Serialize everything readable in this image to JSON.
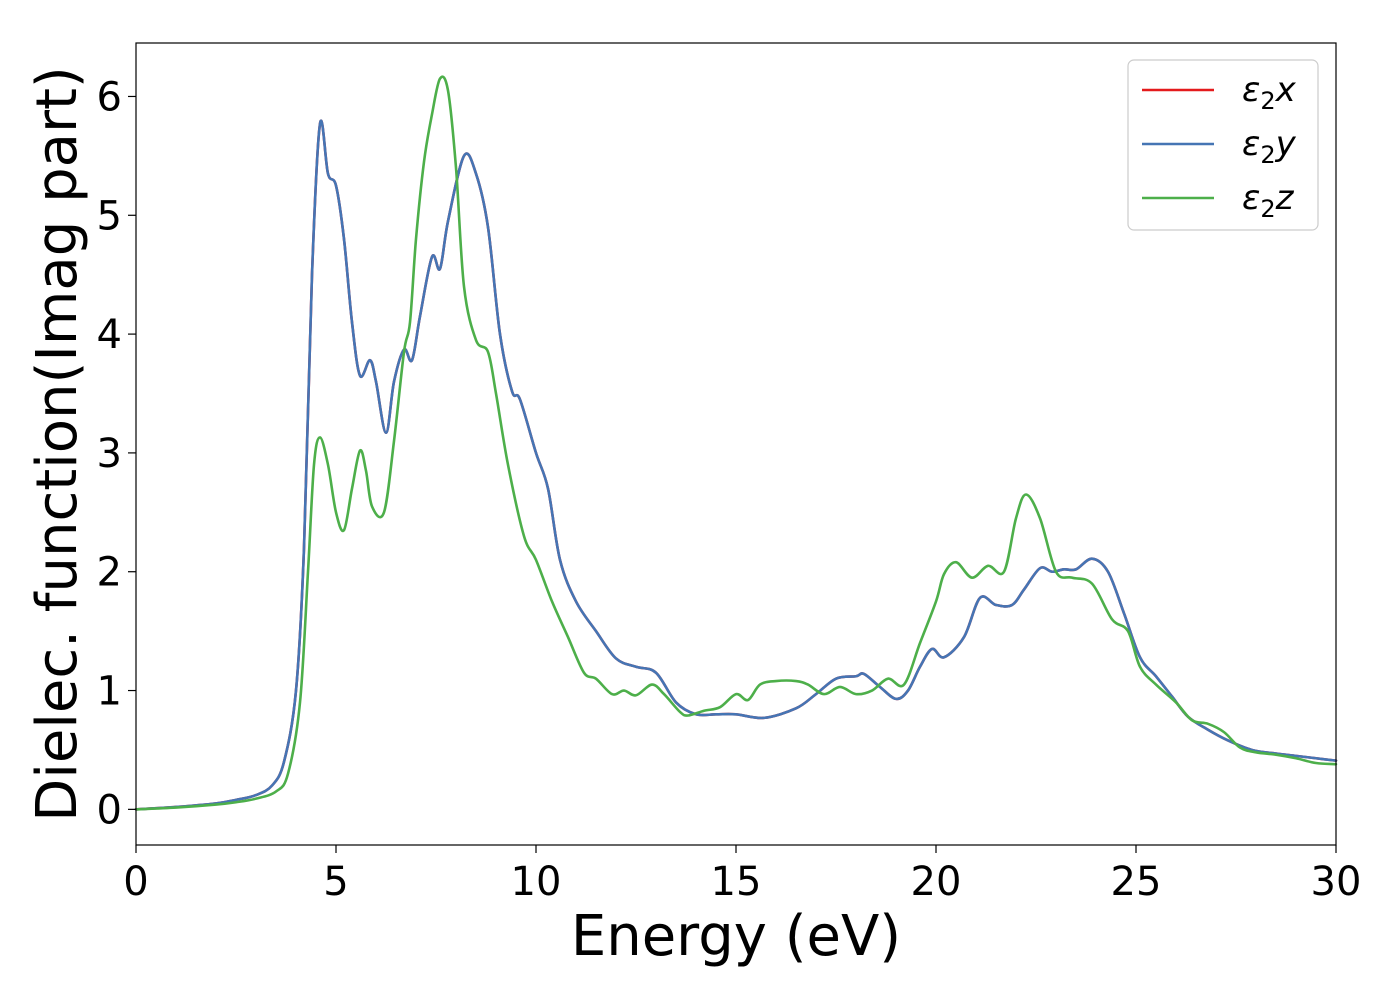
{
  "chart_data": {
    "type": "line",
    "title": "",
    "xlabel": "Energy (eV)",
    "ylabel": "Dielec. function(Imag part)",
    "xlim": [
      0,
      30
    ],
    "ylim": [
      -0.3,
      6.45
    ],
    "xticks": [
      0,
      5,
      10,
      15,
      20,
      25,
      30
    ],
    "yticks": [
      0,
      1,
      2,
      3,
      4,
      5,
      6
    ],
    "grid": false,
    "legend_position": "top-right",
    "series": [
      {
        "name": "ε2x",
        "sub": "2",
        "base": "ε",
        "suffix": "x",
        "color": "#e41a1c",
        "points": [
          [
            0,
            0
          ],
          [
            1,
            0.02
          ],
          [
            2,
            0.05
          ],
          [
            2.5,
            0.08
          ],
          [
            3,
            0.12
          ],
          [
            3.4,
            0.2
          ],
          [
            3.7,
            0.4
          ],
          [
            4,
            1.0
          ],
          [
            4.2,
            2.2
          ],
          [
            4.4,
            4.5
          ],
          [
            4.6,
            5.77
          ],
          [
            4.8,
            5.35
          ],
          [
            5,
            5.25
          ],
          [
            5.2,
            4.8
          ],
          [
            5.4,
            4.1
          ],
          [
            5.6,
            3.65
          ],
          [
            5.85,
            3.78
          ],
          [
            6,
            3.6
          ],
          [
            6.25,
            3.17
          ],
          [
            6.45,
            3.6
          ],
          [
            6.7,
            3.87
          ],
          [
            6.9,
            3.78
          ],
          [
            7.1,
            4.15
          ],
          [
            7.4,
            4.65
          ],
          [
            7.6,
            4.55
          ],
          [
            7.8,
            4.95
          ],
          [
            8.2,
            5.5
          ],
          [
            8.5,
            5.35
          ],
          [
            8.8,
            4.9
          ],
          [
            9.1,
            4.0
          ],
          [
            9.4,
            3.52
          ],
          [
            9.6,
            3.45
          ],
          [
            10,
            3.0
          ],
          [
            10.3,
            2.7
          ],
          [
            10.6,
            2.1
          ],
          [
            11,
            1.75
          ],
          [
            11.5,
            1.5
          ],
          [
            12,
            1.27
          ],
          [
            12.5,
            1.2
          ],
          [
            13,
            1.15
          ],
          [
            13.5,
            0.9
          ],
          [
            14,
            0.8
          ],
          [
            14.5,
            0.8
          ],
          [
            15,
            0.8
          ],
          [
            15.7,
            0.77
          ],
          [
            16.5,
            0.85
          ],
          [
            17,
            0.97
          ],
          [
            17.5,
            1.1
          ],
          [
            18,
            1.12
          ],
          [
            18.2,
            1.14
          ],
          [
            18.6,
            1.03
          ],
          [
            19,
            0.93
          ],
          [
            19.3,
            1.0
          ],
          [
            19.6,
            1.2
          ],
          [
            19.9,
            1.35
          ],
          [
            20.2,
            1.28
          ],
          [
            20.7,
            1.45
          ],
          [
            21.1,
            1.78
          ],
          [
            21.5,
            1.72
          ],
          [
            21.9,
            1.72
          ],
          [
            22.2,
            1.85
          ],
          [
            22.6,
            2.03
          ],
          [
            22.9,
            2.0
          ],
          [
            23.2,
            2.02
          ],
          [
            23.5,
            2.02
          ],
          [
            23.9,
            2.11
          ],
          [
            24.3,
            2.0
          ],
          [
            24.7,
            1.65
          ],
          [
            25.1,
            1.28
          ],
          [
            25.5,
            1.12
          ],
          [
            25.9,
            0.95
          ],
          [
            26.3,
            0.78
          ],
          [
            26.8,
            0.67
          ],
          [
            27.3,
            0.58
          ],
          [
            27.9,
            0.5
          ],
          [
            28.5,
            0.47
          ],
          [
            29,
            0.45
          ],
          [
            29.5,
            0.43
          ],
          [
            30,
            0.41
          ]
        ]
      },
      {
        "name": "ε2y",
        "sub": "2",
        "base": "ε",
        "suffix": "y",
        "color": "#4575b4",
        "points": [
          [
            0,
            0
          ],
          [
            1,
            0.02
          ],
          [
            2,
            0.05
          ],
          [
            2.5,
            0.08
          ],
          [
            3,
            0.12
          ],
          [
            3.4,
            0.2
          ],
          [
            3.7,
            0.4
          ],
          [
            4,
            1.0
          ],
          [
            4.2,
            2.2
          ],
          [
            4.4,
            4.5
          ],
          [
            4.6,
            5.77
          ],
          [
            4.8,
            5.35
          ],
          [
            5,
            5.25
          ],
          [
            5.2,
            4.8
          ],
          [
            5.4,
            4.1
          ],
          [
            5.6,
            3.65
          ],
          [
            5.85,
            3.78
          ],
          [
            6,
            3.6
          ],
          [
            6.25,
            3.17
          ],
          [
            6.45,
            3.6
          ],
          [
            6.7,
            3.87
          ],
          [
            6.9,
            3.78
          ],
          [
            7.1,
            4.15
          ],
          [
            7.4,
            4.65
          ],
          [
            7.6,
            4.55
          ],
          [
            7.8,
            4.95
          ],
          [
            8.2,
            5.5
          ],
          [
            8.5,
            5.35
          ],
          [
            8.8,
            4.9
          ],
          [
            9.1,
            4.0
          ],
          [
            9.4,
            3.52
          ],
          [
            9.6,
            3.45
          ],
          [
            10,
            3.0
          ],
          [
            10.3,
            2.7
          ],
          [
            10.6,
            2.1
          ],
          [
            11,
            1.75
          ],
          [
            11.5,
            1.5
          ],
          [
            12,
            1.27
          ],
          [
            12.5,
            1.2
          ],
          [
            13,
            1.15
          ],
          [
            13.5,
            0.9
          ],
          [
            14,
            0.8
          ],
          [
            14.5,
            0.8
          ],
          [
            15,
            0.8
          ],
          [
            15.7,
            0.77
          ],
          [
            16.5,
            0.85
          ],
          [
            17,
            0.97
          ],
          [
            17.5,
            1.1
          ],
          [
            18,
            1.12
          ],
          [
            18.2,
            1.14
          ],
          [
            18.6,
            1.03
          ],
          [
            19,
            0.93
          ],
          [
            19.3,
            1.0
          ],
          [
            19.6,
            1.2
          ],
          [
            19.9,
            1.35
          ],
          [
            20.2,
            1.28
          ],
          [
            20.7,
            1.45
          ],
          [
            21.1,
            1.78
          ],
          [
            21.5,
            1.72
          ],
          [
            21.9,
            1.72
          ],
          [
            22.2,
            1.85
          ],
          [
            22.6,
            2.03
          ],
          [
            22.9,
            2.0
          ],
          [
            23.2,
            2.02
          ],
          [
            23.5,
            2.02
          ],
          [
            23.9,
            2.11
          ],
          [
            24.3,
            2.0
          ],
          [
            24.7,
            1.65
          ],
          [
            25.1,
            1.28
          ],
          [
            25.5,
            1.12
          ],
          [
            25.9,
            0.95
          ],
          [
            26.3,
            0.78
          ],
          [
            26.8,
            0.67
          ],
          [
            27.3,
            0.58
          ],
          [
            27.9,
            0.5
          ],
          [
            28.5,
            0.47
          ],
          [
            29,
            0.45
          ],
          [
            29.5,
            0.43
          ],
          [
            30,
            0.41
          ]
        ]
      },
      {
        "name": "ε2z",
        "sub": "2",
        "base": "ε",
        "suffix": "z",
        "color": "#4daf4a",
        "points": [
          [
            0,
            0
          ],
          [
            1,
            0.015
          ],
          [
            2,
            0.04
          ],
          [
            2.5,
            0.06
          ],
          [
            3,
            0.09
          ],
          [
            3.5,
            0.15
          ],
          [
            3.8,
            0.3
          ],
          [
            4.1,
            0.9
          ],
          [
            4.3,
            2.0
          ],
          [
            4.45,
            2.9
          ],
          [
            4.6,
            3.13
          ],
          [
            4.8,
            2.9
          ],
          [
            5,
            2.5
          ],
          [
            5.2,
            2.35
          ],
          [
            5.4,
            2.7
          ],
          [
            5.6,
            3.02
          ],
          [
            5.75,
            2.85
          ],
          [
            5.9,
            2.55
          ],
          [
            6.2,
            2.5
          ],
          [
            6.45,
            3.1
          ],
          [
            6.7,
            3.85
          ],
          [
            6.85,
            4.1
          ],
          [
            7.0,
            4.8
          ],
          [
            7.2,
            5.45
          ],
          [
            7.4,
            5.85
          ],
          [
            7.6,
            6.15
          ],
          [
            7.8,
            6.05
          ],
          [
            8.0,
            5.4
          ],
          [
            8.2,
            4.4
          ],
          [
            8.5,
            3.95
          ],
          [
            8.8,
            3.85
          ],
          [
            9.0,
            3.5
          ],
          [
            9.3,
            2.9
          ],
          [
            9.7,
            2.3
          ],
          [
            10,
            2.1
          ],
          [
            10.4,
            1.75
          ],
          [
            10.8,
            1.45
          ],
          [
            11.2,
            1.15
          ],
          [
            11.5,
            1.1
          ],
          [
            11.9,
            0.97
          ],
          [
            12.2,
            1.0
          ],
          [
            12.5,
            0.96
          ],
          [
            12.9,
            1.05
          ],
          [
            13.2,
            0.97
          ],
          [
            13.6,
            0.82
          ],
          [
            13.8,
            0.79
          ],
          [
            14.2,
            0.83
          ],
          [
            14.6,
            0.86
          ],
          [
            15,
            0.97
          ],
          [
            15.3,
            0.92
          ],
          [
            15.6,
            1.05
          ],
          [
            16,
            1.08
          ],
          [
            16.5,
            1.08
          ],
          [
            16.8,
            1.05
          ],
          [
            17.2,
            0.97
          ],
          [
            17.6,
            1.03
          ],
          [
            18,
            0.97
          ],
          [
            18.4,
            1.0
          ],
          [
            18.8,
            1.1
          ],
          [
            19.2,
            1.05
          ],
          [
            19.6,
            1.4
          ],
          [
            20.0,
            1.75
          ],
          [
            20.2,
            1.98
          ],
          [
            20.5,
            2.08
          ],
          [
            20.9,
            1.95
          ],
          [
            21.3,
            2.05
          ],
          [
            21.7,
            2.0
          ],
          [
            22.0,
            2.45
          ],
          [
            22.25,
            2.65
          ],
          [
            22.6,
            2.45
          ],
          [
            23,
            2.0
          ],
          [
            23.4,
            1.95
          ],
          [
            23.9,
            1.9
          ],
          [
            24.4,
            1.6
          ],
          [
            24.8,
            1.5
          ],
          [
            25.1,
            1.2
          ],
          [
            25.5,
            1.05
          ],
          [
            26,
            0.9
          ],
          [
            26.4,
            0.75
          ],
          [
            26.8,
            0.72
          ],
          [
            27.2,
            0.65
          ],
          [
            27.6,
            0.52
          ],
          [
            28,
            0.48
          ],
          [
            28.5,
            0.46
          ],
          [
            29,
            0.43
          ],
          [
            29.5,
            0.39
          ],
          [
            30,
            0.38
          ]
        ]
      }
    ]
  }
}
